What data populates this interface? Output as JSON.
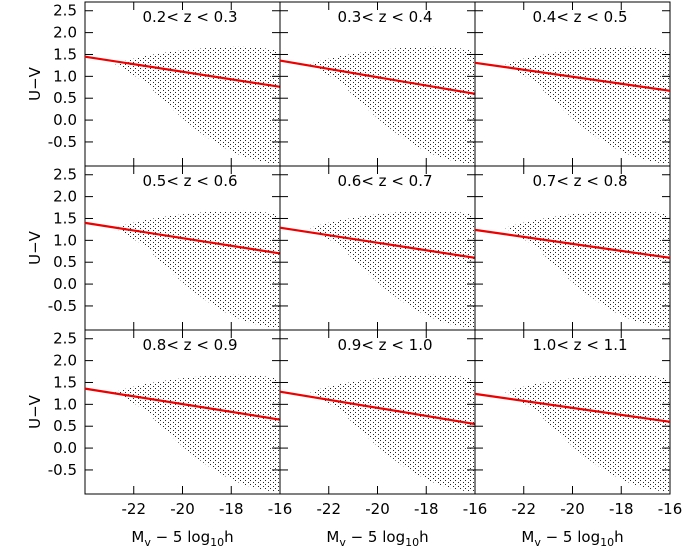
{
  "chart_data": [
    {
      "type": "line",
      "title": "0.2< z < 0.3",
      "x": [
        -24,
        -16
      ],
      "series": [
        {
          "color": "#ee0000",
          "values": [
            1.45,
            0.76
          ]
        }
      ],
      "xlim": [
        -24,
        -16
      ],
      "ylim": [
        -1.05,
        2.7
      ],
      "xticks": [
        -22,
        -20,
        -18,
        -16
      ],
      "yticks": [
        -0.5,
        {
          "value": 0,
          "label": "0.0"
        },
        0.5,
        {
          "value": 1,
          "label": "1.0"
        },
        1.5,
        {
          "value": 2,
          "label": "2.0"
        },
        2.5
      ],
      "ylabel": "U−V"
    },
    {
      "type": "line",
      "title": "0.3< z < 0.4",
      "x": [
        -24,
        -16
      ],
      "series": [
        {
          "color": "#ee0000",
          "values": [
            1.36,
            0.6
          ]
        }
      ],
      "xlim": [
        -24,
        -16
      ],
      "ylim": [
        -1.05,
        2.7
      ],
      "xticks": [
        -22,
        -20,
        -18,
        -16
      ],
      "yticks": [
        -0.5,
        0,
        0.5,
        1,
        1.5,
        2,
        2.5
      ]
    },
    {
      "type": "line",
      "title": "0.4< z < 0.5",
      "x": [
        -24,
        -16
      ],
      "series": [
        {
          "color": "#ee0000",
          "values": [
            1.31,
            0.67
          ]
        }
      ],
      "xlim": [
        -24,
        -16
      ],
      "ylim": [
        -1.05,
        2.7
      ],
      "xticks": [
        -22,
        -20,
        -18,
        -16
      ],
      "yticks": [
        -0.5,
        0,
        0.5,
        1,
        1.5,
        2,
        2.5
      ]
    },
    {
      "type": "line",
      "title": "0.5< z < 0.6",
      "x": [
        -24,
        -16
      ],
      "series": [
        {
          "color": "#ee0000",
          "values": [
            1.4,
            0.7
          ]
        }
      ],
      "xlim": [
        -24,
        -16
      ],
      "ylim": [
        -1.05,
        2.7
      ],
      "xticks": [
        -22,
        -20,
        -18,
        -16
      ],
      "yticks": [
        -0.5,
        {
          "value": 0,
          "label": "0.0"
        },
        0.5,
        {
          "value": 1,
          "label": "1.0"
        },
        1.5,
        {
          "value": 2,
          "label": "2.0"
        },
        2.5
      ],
      "ylabel": "U−V"
    },
    {
      "type": "line",
      "title": "0.6< z < 0.7",
      "x": [
        -24,
        -16
      ],
      "series": [
        {
          "color": "#ee0000",
          "values": [
            1.29,
            0.6
          ]
        }
      ],
      "xlim": [
        -24,
        -16
      ],
      "ylim": [
        -1.05,
        2.7
      ],
      "xticks": [
        -22,
        -20,
        -18,
        -16
      ],
      "yticks": [
        -0.5,
        0,
        0.5,
        1,
        1.5,
        2,
        2.5
      ]
    },
    {
      "type": "line",
      "title": "0.7< z < 0.8",
      "x": [
        -24,
        -16
      ],
      "series": [
        {
          "color": "#ee0000",
          "values": [
            1.24,
            0.6
          ]
        }
      ],
      "xlim": [
        -24,
        -16
      ],
      "ylim": [
        -1.05,
        2.7
      ],
      "xticks": [
        -22,
        -20,
        -18,
        -16
      ],
      "yticks": [
        -0.5,
        0,
        0.5,
        1,
        1.5,
        2,
        2.5
      ]
    },
    {
      "type": "line",
      "title": "0.8< z < 0.9",
      "x": [
        -24,
        -16
      ],
      "series": [
        {
          "color": "#ee0000",
          "values": [
            1.36,
            0.65
          ]
        }
      ],
      "xlim": [
        -24,
        -16
      ],
      "ylim": [
        -1.05,
        2.7
      ],
      "xticks": [
        -22,
        -20,
        -18,
        -16
      ],
      "yticks": [
        -0.5,
        {
          "value": 0,
          "label": "0.0"
        },
        0.5,
        {
          "value": 1,
          "label": "1.0"
        },
        1.5,
        {
          "value": 2,
          "label": "2.0"
        },
        2.5
      ],
      "ylabel": "U−V",
      "xlabel": [
        "M",
        "v",
        " − 5 log",
        "10",
        "h"
      ]
    },
    {
      "type": "line",
      "title": "0.9< z < 1.0",
      "x": [
        -24,
        -16
      ],
      "series": [
        {
          "color": "#ee0000",
          "values": [
            1.29,
            0.55
          ]
        }
      ],
      "xlim": [
        -24,
        -16
      ],
      "ylim": [
        -1.05,
        2.7
      ],
      "xticks": [
        -22,
        -20,
        -18,
        -16
      ],
      "yticks": [
        -0.5,
        0,
        0.5,
        1,
        1.5,
        2,
        2.5
      ],
      "xlabel": [
        "M",
        "v",
        " − 5 log",
        "10",
        "h"
      ]
    },
    {
      "type": "line",
      "title": "1.0< z < 1.1",
      "x": [
        -24,
        -16
      ],
      "series": [
        {
          "color": "#ee0000",
          "values": [
            1.24,
            0.6
          ]
        }
      ],
      "xlim": [
        -24,
        -16
      ],
      "ylim": [
        -1.05,
        2.7
      ],
      "xticks": [
        -22,
        -20,
        -18,
        -16
      ],
      "yticks": [
        -0.5,
        0,
        0.5,
        1,
        1.5,
        2,
        2.5
      ],
      "xlabel": [
        "M",
        "v",
        " − 5 log",
        "10",
        "h"
      ]
    }
  ]
}
